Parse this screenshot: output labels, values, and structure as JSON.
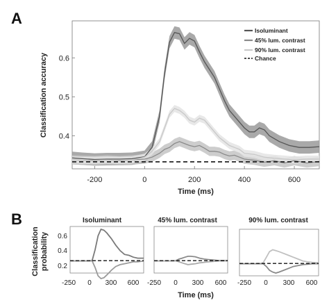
{
  "panel_a": {
    "letter": "A",
    "ylabel": "Classification accuracy",
    "xlabel": "Time (ms)",
    "x_ticks": [
      "-200",
      "0",
      "200",
      "400",
      "600"
    ],
    "y_ticks": [
      "0.4",
      "0.5",
      "0.6"
    ],
    "legend": {
      "isoluminant": "Isoluminant",
      "lum45": "45% lum. contrast",
      "lum90": "90% lum. contrast",
      "chance": "Chance"
    }
  },
  "panel_b": {
    "letter": "B",
    "ylabel_line1": "Classification",
    "ylabel_line2": "probability",
    "xlabel": "Time (ms)",
    "titles": [
      "Isoluminant",
      "45% lum. contrast",
      "90% lum. contrast"
    ],
    "y_ticks": [
      "0.6",
      "0.4",
      "0.2"
    ],
    "x_ticks": [
      "-250",
      "0",
      "300",
      "600"
    ]
  },
  "chart_data": [
    {
      "type": "line",
      "xlabel": "Time (ms)",
      "ylabel": "Classification accuracy",
      "xlim": [
        -290,
        700
      ],
      "ylim": [
        0.315,
        0.695
      ],
      "series": [
        {
          "name": "Isoluminant",
          "color": "#555555",
          "band": "#9a9a9a",
          "x": [
            -290,
            -250,
            -200,
            -150,
            -100,
            -50,
            0,
            30,
            60,
            80,
            100,
            120,
            140,
            160,
            180,
            200,
            220,
            240,
            260,
            280,
            300,
            320,
            340,
            360,
            380,
            400,
            420,
            440,
            460,
            480,
            500,
            540,
            580,
            620,
            660,
            700
          ],
          "y": [
            0.343,
            0.341,
            0.339,
            0.34,
            0.34,
            0.341,
            0.346,
            0.37,
            0.45,
            0.56,
            0.64,
            0.665,
            0.662,
            0.637,
            0.65,
            0.643,
            0.615,
            0.59,
            0.57,
            0.55,
            0.52,
            0.49,
            0.465,
            0.45,
            0.435,
            0.42,
            0.41,
            0.41,
            0.42,
            0.415,
            0.4,
            0.385,
            0.375,
            0.37,
            0.37,
            0.372
          ]
        },
        {
          "name": "45% lum. contrast",
          "color": "#8a8a8a",
          "band": "#c4c4c4",
          "x": [
            -290,
            -250,
            -200,
            -150,
            -100,
            -50,
            0,
            30,
            60,
            80,
            100,
            120,
            140,
            160,
            180,
            200,
            220,
            240,
            260,
            280,
            300,
            320,
            340,
            360,
            380,
            400,
            440,
            480,
            520,
            560,
            600,
            650,
            700
          ],
          "y": [
            0.338,
            0.337,
            0.336,
            0.338,
            0.336,
            0.338,
            0.34,
            0.345,
            0.355,
            0.365,
            0.37,
            0.38,
            0.385,
            0.38,
            0.375,
            0.372,
            0.375,
            0.368,
            0.36,
            0.36,
            0.358,
            0.352,
            0.348,
            0.35,
            0.345,
            0.34,
            0.337,
            0.332,
            0.336,
            0.33,
            0.336,
            0.33,
            0.334
          ]
        },
        {
          "name": "90% lum. contrast",
          "color": "#c8c8c8",
          "band": "#e4e4e4",
          "x": [
            -290,
            -250,
            -200,
            -150,
            -100,
            -50,
            0,
            30,
            60,
            80,
            100,
            120,
            140,
            160,
            180,
            200,
            220,
            240,
            260,
            280,
            300,
            320,
            340,
            360,
            380,
            400,
            440,
            480,
            520,
            560,
            600,
            650,
            700
          ],
          "y": [
            0.338,
            0.337,
            0.337,
            0.338,
            0.337,
            0.338,
            0.345,
            0.36,
            0.385,
            0.42,
            0.455,
            0.47,
            0.465,
            0.455,
            0.44,
            0.435,
            0.445,
            0.44,
            0.425,
            0.41,
            0.395,
            0.385,
            0.375,
            0.37,
            0.365,
            0.355,
            0.352,
            0.345,
            0.342,
            0.34,
            0.338,
            0.34,
            0.34
          ]
        }
      ],
      "reference_line": {
        "name": "Chance",
        "y": 0.333,
        "style": "dashed"
      },
      "legend_position": "top-right"
    },
    {
      "type": "line",
      "title": "Isoluminant",
      "xlim": [
        -300,
        700
      ],
      "ylim": [
        0.2,
        0.7
      ],
      "x": [
        -300,
        -250,
        -150,
        -50,
        0,
        40,
        80,
        120,
        160,
        200,
        260,
        320,
        380,
        440,
        500,
        560,
        620,
        700
      ],
      "upper": [
        0.33,
        0.33,
        0.33,
        0.33,
        0.335,
        0.45,
        0.6,
        0.67,
        0.66,
        0.63,
        0.57,
        0.5,
        0.44,
        0.4,
        0.39,
        0.37,
        0.36,
        0.36
      ],
      "lower": [
        0.33,
        0.33,
        0.33,
        0.33,
        0.33,
        0.26,
        0.17,
        0.14,
        0.15,
        0.18,
        0.23,
        0.27,
        0.29,
        0.3,
        0.31,
        0.32,
        0.32,
        0.33
      ],
      "chance": 0.333
    },
    {
      "type": "line",
      "title": "45% lum. contrast",
      "xlim": [
        -300,
        700
      ],
      "ylim": [
        0.2,
        0.7
      ],
      "x": [
        -300,
        -250,
        -150,
        -50,
        0,
        40,
        80,
        120,
        160,
        200,
        260,
        320,
        380,
        440,
        500,
        560,
        620,
        700
      ],
      "upper": [
        0.33,
        0.33,
        0.33,
        0.33,
        0.335,
        0.35,
        0.36,
        0.37,
        0.38,
        0.38,
        0.375,
        0.36,
        0.35,
        0.345,
        0.34,
        0.335,
        0.335,
        0.335
      ],
      "lower": [
        0.33,
        0.33,
        0.33,
        0.33,
        0.33,
        0.32,
        0.31,
        0.3,
        0.29,
        0.295,
        0.3,
        0.31,
        0.315,
        0.32,
        0.325,
        0.33,
        0.33,
        0.33
      ],
      "chance": 0.333
    },
    {
      "type": "line",
      "title": "90% lum. contrast",
      "xlim": [
        -300,
        700
      ],
      "ylim": [
        0.2,
        0.7
      ],
      "x": [
        -300,
        -250,
        -150,
        -50,
        0,
        40,
        80,
        120,
        160,
        200,
        260,
        320,
        380,
        440,
        500,
        560,
        620,
        700
      ],
      "upper": [
        0.33,
        0.33,
        0.33,
        0.33,
        0.34,
        0.4,
        0.46,
        0.48,
        0.47,
        0.46,
        0.44,
        0.42,
        0.4,
        0.38,
        0.36,
        0.35,
        0.345,
        0.34
      ],
      "lower": [
        0.33,
        0.33,
        0.33,
        0.33,
        0.33,
        0.3,
        0.26,
        0.24,
        0.23,
        0.24,
        0.26,
        0.28,
        0.3,
        0.31,
        0.32,
        0.325,
        0.33,
        0.33
      ],
      "chance": 0.333
    }
  ]
}
